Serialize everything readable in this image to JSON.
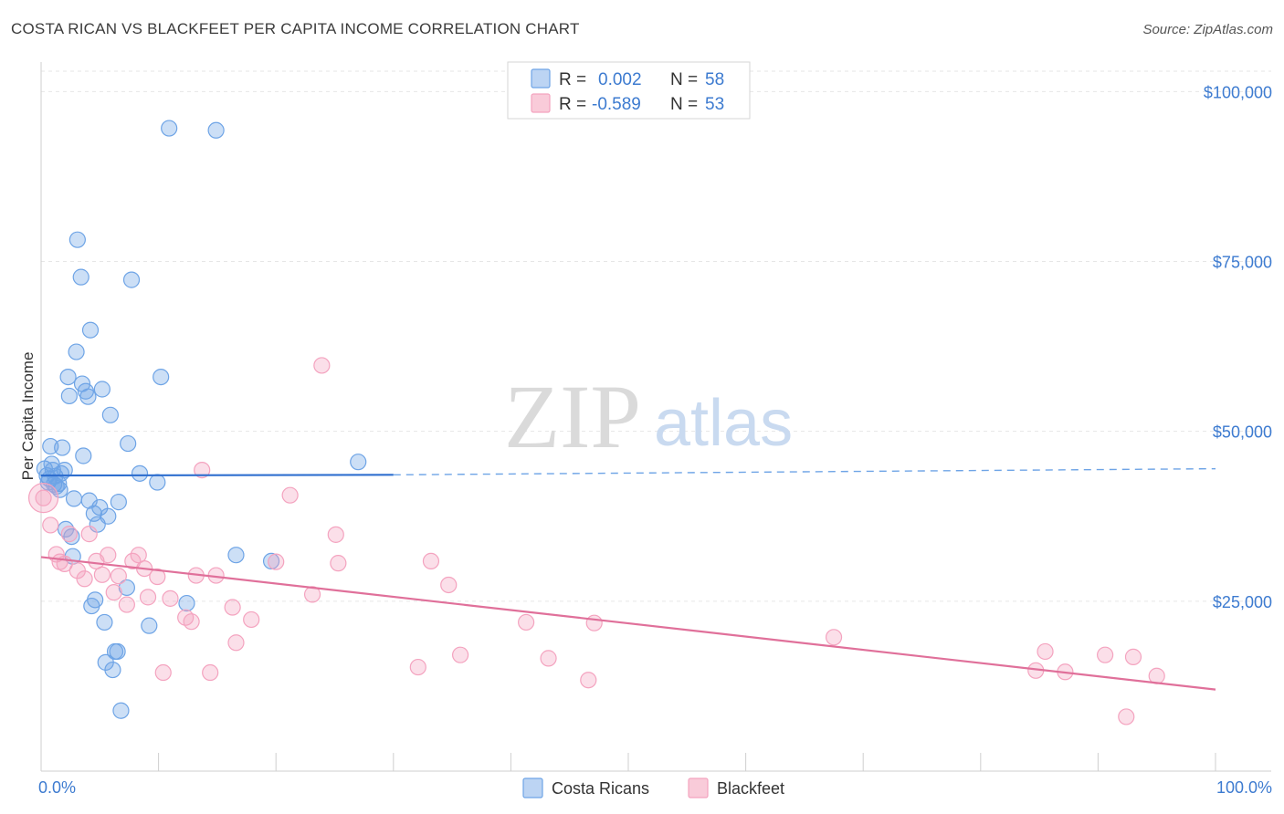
{
  "title": "COSTA RICAN VS BLACKFEET PER CAPITA INCOME CORRELATION CHART",
  "source": "Source: ZipAtlas.com",
  "watermark": {
    "zip": "ZIP",
    "atlas": "atlas"
  },
  "colors": {
    "blue": "#6ea4e6",
    "blue_line": "#2f6fcf",
    "pink": "#f4a3bf",
    "pink_line": "#e0709a",
    "accent": "#3d7bd0"
  },
  "legend": {
    "r_label": "R =",
    "n_label": "N =",
    "rows": [
      {
        "r": "0.002",
        "n": "58"
      },
      {
        "r": "-0.589",
        "n": "53"
      }
    ]
  },
  "bottom_legend": [
    "Costa Ricans",
    "Blackfeet"
  ],
  "chart_data": {
    "type": "scatter",
    "title": "COSTA RICAN VS BLACKFEET PER CAPITA INCOME CORRELATION CHART",
    "xlabel": "",
    "ylabel": "Per Capita Income",
    "xlim": [
      0,
      100
    ],
    "ylim": [
      0,
      103000
    ],
    "x_tick_labels": [
      "0.0%",
      "100.0%"
    ],
    "y_ticks": [
      25000,
      50000,
      75000,
      100000
    ],
    "y_tick_labels": [
      "$25,000",
      "$50,000",
      "$75,000",
      "$100,000"
    ],
    "series": [
      {
        "name": "Costa Ricans",
        "r": 0.002,
        "n": 58,
        "trend": {
          "x0": 0,
          "y0": 43500,
          "x1": 30,
          "y1": 43600,
          "dashed_to_x": 100,
          "dashed_to_y": 44500
        },
        "points": [
          [
            0.3,
            44500
          ],
          [
            0.5,
            43500
          ],
          [
            0.6,
            42500
          ],
          [
            0.7,
            43000
          ],
          [
            0.8,
            47800
          ],
          [
            0.9,
            45200
          ],
          [
            1.0,
            44300
          ],
          [
            1.1,
            42200
          ],
          [
            1.2,
            43400
          ],
          [
            1.3,
            41900
          ],
          [
            1.5,
            42300
          ],
          [
            1.6,
            41400
          ],
          [
            1.7,
            43800
          ],
          [
            1.8,
            47600
          ],
          [
            2.0,
            44300
          ],
          [
            2.1,
            35600
          ],
          [
            2.3,
            58000
          ],
          [
            2.4,
            55200
          ],
          [
            2.6,
            34500
          ],
          [
            2.7,
            31600
          ],
          [
            2.8,
            40100
          ],
          [
            3.0,
            61700
          ],
          [
            3.1,
            78200
          ],
          [
            3.4,
            72700
          ],
          [
            3.5,
            57000
          ],
          [
            3.6,
            46400
          ],
          [
            3.8,
            55900
          ],
          [
            4.0,
            55100
          ],
          [
            4.1,
            39800
          ],
          [
            4.2,
            64900
          ],
          [
            4.3,
            24300
          ],
          [
            4.5,
            37900
          ],
          [
            4.6,
            25200
          ],
          [
            4.8,
            36300
          ],
          [
            5.0,
            38800
          ],
          [
            5.2,
            56200
          ],
          [
            5.4,
            21900
          ],
          [
            5.5,
            16000
          ],
          [
            5.7,
            37500
          ],
          [
            5.9,
            52400
          ],
          [
            6.1,
            14900
          ],
          [
            6.3,
            17600
          ],
          [
            6.5,
            17600
          ],
          [
            6.6,
            39600
          ],
          [
            6.8,
            8900
          ],
          [
            7.3,
            27000
          ],
          [
            7.4,
            48200
          ],
          [
            7.7,
            72300
          ],
          [
            8.4,
            43800
          ],
          [
            9.2,
            21400
          ],
          [
            9.9,
            42500
          ],
          [
            10.2,
            58000
          ],
          [
            10.9,
            94600
          ],
          [
            12.4,
            24700
          ],
          [
            14.9,
            94300
          ],
          [
            16.6,
            31800
          ],
          [
            19.6,
            30900
          ],
          [
            27.0,
            45500
          ]
        ]
      },
      {
        "name": "Blackfeet",
        "r": -0.589,
        "n": 53,
        "trend": {
          "x0": 0,
          "y0": 31500,
          "x1": 100,
          "y1": 12000
        },
        "points": [
          [
            0.2,
            40200
          ],
          [
            0.8,
            36200
          ],
          [
            1.3,
            31900
          ],
          [
            1.6,
            30800
          ],
          [
            2.0,
            30500
          ],
          [
            2.4,
            34900
          ],
          [
            3.1,
            29500
          ],
          [
            3.7,
            28300
          ],
          [
            4.1,
            34900
          ],
          [
            4.7,
            30900
          ],
          [
            5.2,
            28900
          ],
          [
            5.7,
            31800
          ],
          [
            6.2,
            26300
          ],
          [
            6.6,
            28700
          ],
          [
            7.3,
            24500
          ],
          [
            7.8,
            30900
          ],
          [
            8.3,
            31800
          ],
          [
            8.8,
            29800
          ],
          [
            9.1,
            25600
          ],
          [
            9.9,
            28600
          ],
          [
            10.4,
            14500
          ],
          [
            11.0,
            25400
          ],
          [
            12.3,
            22600
          ],
          [
            12.8,
            22000
          ],
          [
            13.2,
            28800
          ],
          [
            13.7,
            44300
          ],
          [
            14.4,
            14500
          ],
          [
            14.9,
            28800
          ],
          [
            16.3,
            24100
          ],
          [
            16.6,
            18900
          ],
          [
            17.9,
            22300
          ],
          [
            20.0,
            30800
          ],
          [
            21.2,
            40600
          ],
          [
            23.1,
            26000
          ],
          [
            23.9,
            59700
          ],
          [
            25.1,
            34800
          ],
          [
            25.3,
            30600
          ],
          [
            32.1,
            15300
          ],
          [
            33.2,
            30900
          ],
          [
            34.7,
            27400
          ],
          [
            35.7,
            17100
          ],
          [
            41.3,
            21900
          ],
          [
            43.2,
            16600
          ],
          [
            46.6,
            13400
          ],
          [
            47.1,
            21800
          ],
          [
            67.5,
            19700
          ],
          [
            84.7,
            14800
          ],
          [
            85.5,
            17600
          ],
          [
            87.2,
            14600
          ],
          [
            90.6,
            17100
          ],
          [
            92.4,
            8000
          ],
          [
            93.0,
            16800
          ],
          [
            95.0,
            14000
          ]
        ]
      }
    ]
  }
}
